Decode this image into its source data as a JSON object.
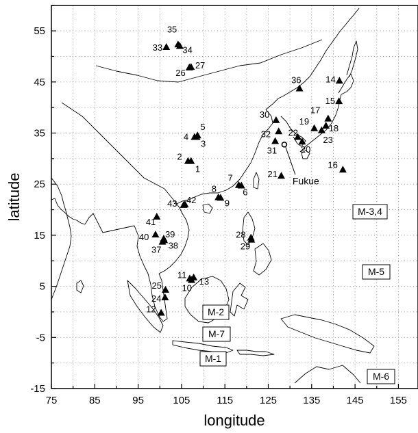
{
  "axes": {
    "xlabel": "longitude",
    "ylabel": "latitude",
    "xlim": [
      75,
      160
    ],
    "ylim": [
      -15,
      60
    ],
    "xticks": [
      75,
      85,
      95,
      105,
      115,
      125,
      135,
      145,
      155
    ],
    "yticks": [
      -15,
      -5,
      5,
      15,
      25,
      35,
      45,
      55
    ],
    "grid": "dotted"
  },
  "domains": [
    {
      "label": "M-1",
      "color": "#1a9e3a"
    },
    {
      "label": "M-2",
      "color": "#dcd222"
    },
    {
      "label": "M-3,4",
      "color": "#e8232e"
    },
    {
      "label": "M-5",
      "color": "#e8236e"
    },
    {
      "label": "M-6",
      "color": "#8a3fa0"
    },
    {
      "label": "M-7",
      "color": "#1a9ad6"
    }
  ],
  "stations": [
    {
      "id": "1",
      "lon": 107.2,
      "lat": 29.5
    },
    {
      "id": "2",
      "lon": 106.5,
      "lat": 29.5
    },
    {
      "id": "3",
      "lon": 108.5,
      "lat": 34.2
    },
    {
      "id": "4",
      "lon": 108.0,
      "lat": 34.2
    },
    {
      "id": "5",
      "lon": 108.7,
      "lat": 34.5
    },
    {
      "id": "6",
      "lon": 118.8,
      "lat": 24.7
    },
    {
      "id": "7",
      "lon": 118.2,
      "lat": 24.8
    },
    {
      "id": "8",
      "lon": 113.5,
      "lat": 22.4
    },
    {
      "id": "9",
      "lon": 114.0,
      "lat": 22.3
    },
    {
      "id": "10",
      "lon": 107.3,
      "lat": 6.2
    },
    {
      "id": "11",
      "lon": 106.9,
      "lat": 6.5
    },
    {
      "id": "12",
      "lon": 100.3,
      "lat": -0.2
    },
    {
      "id": "13",
      "lon": 107.8,
      "lat": 6.7
    },
    {
      "id": "14",
      "lon": 141.4,
      "lat": 45.2
    },
    {
      "id": "15",
      "lon": 141.3,
      "lat": 41.2
    },
    {
      "id": "16",
      "lon": 142.2,
      "lat": 27.8
    },
    {
      "id": "17",
      "lon": 138.8,
      "lat": 37.8
    },
    {
      "id": "18",
      "lon": 138.3,
      "lat": 36.4
    },
    {
      "id": "19",
      "lon": 135.6,
      "lat": 35.9
    },
    {
      "id": "20",
      "lon": 132.8,
      "lat": 33.3
    },
    {
      "id": "21",
      "lon": 128.0,
      "lat": 26.6
    },
    {
      "id": "22",
      "lon": 131.8,
      "lat": 34.2
    },
    {
      "id": "23",
      "lon": 137.3,
      "lat": 35.5
    },
    {
      "id": "24",
      "lon": 101.2,
      "lat": 2.8
    },
    {
      "id": "25",
      "lon": 101.3,
      "lat": 4.3
    },
    {
      "id": "26",
      "lon": 106.8,
      "lat": 47.8
    },
    {
      "id": "27",
      "lon": 107.2,
      "lat": 47.9
    },
    {
      "id": "28",
      "lon": 121.0,
      "lat": 14.5
    },
    {
      "id": "29",
      "lon": 121.1,
      "lat": 14.1
    },
    {
      "id": "30",
      "lon": 126.8,
      "lat": 37.5
    },
    {
      "id": "31",
      "lon": 126.6,
      "lat": 33.4
    },
    {
      "id": "32",
      "lon": 127.4,
      "lat": 35.3
    },
    {
      "id": "33",
      "lon": 101.5,
      "lat": 51.8
    },
    {
      "id": "34",
      "lon": 104.6,
      "lat": 52.0
    },
    {
      "id": "35",
      "lon": 104.2,
      "lat": 52.3
    },
    {
      "id": "36",
      "lon": 132.2,
      "lat": 43.7
    },
    {
      "id": "37",
      "lon": 100.6,
      "lat": 13.7
    },
    {
      "id": "38",
      "lon": 101.0,
      "lat": 14.0
    },
    {
      "id": "39",
      "lon": 100.9,
      "lat": 14.3
    },
    {
      "id": "40",
      "lon": 99.0,
      "lat": 15.1
    },
    {
      "id": "41",
      "lon": 99.3,
      "lat": 18.6
    },
    {
      "id": "42",
      "lon": 105.8,
      "lat": 21.0
    },
    {
      "id": "43",
      "lon": 105.5,
      "lat": 20.9
    }
  ],
  "site": {
    "name": "Fukue",
    "lon": 128.7,
    "lat": 32.75
  }
}
